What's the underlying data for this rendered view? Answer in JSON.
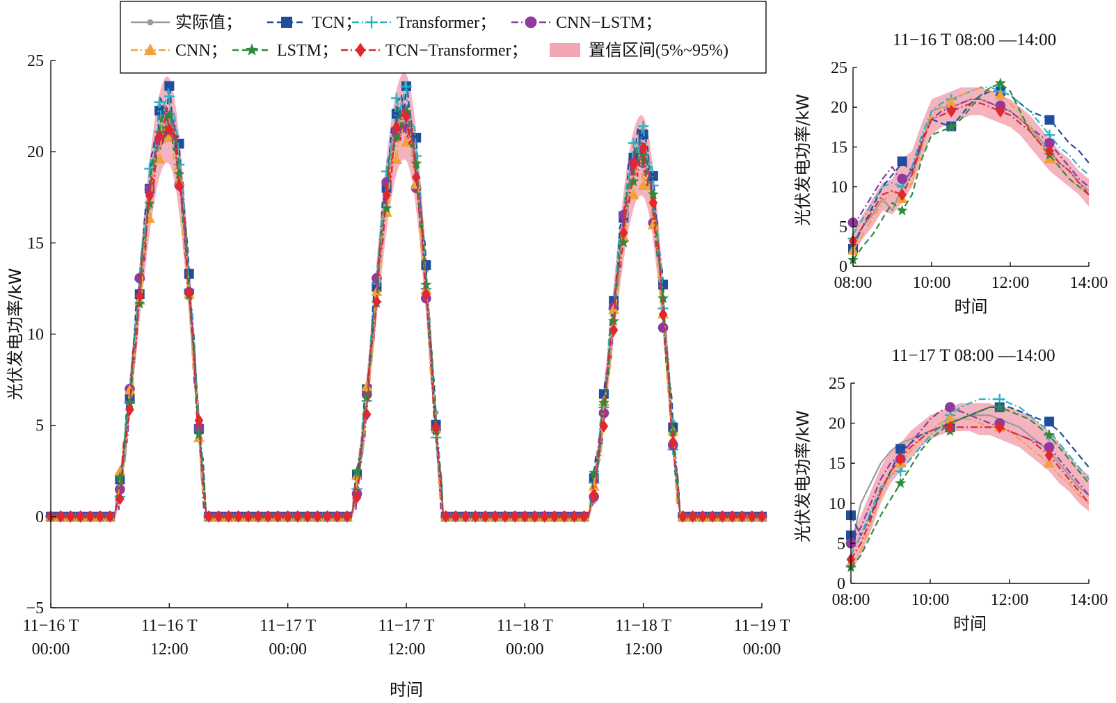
{
  "colors": {
    "actual": "#9a9a9a",
    "tcn": "#1f4e9c",
    "transformer": "#2bb3c0",
    "cnn_lstm": "#8e3a9f",
    "cnn": "#f2a23a",
    "lstm": "#2e8b3e",
    "tcn_transformer": "#e0282e",
    "ci": "#f2a6b3"
  },
  "legend": [
    {
      "key": "actual",
      "label": "实际值；",
      "marker": "dot"
    },
    {
      "key": "tcn",
      "label": "TCN；",
      "marker": "square"
    },
    {
      "key": "transformer",
      "label": "Transformer；",
      "marker": "plus"
    },
    {
      "key": "cnn_lstm",
      "label": "CNN−LSTM；",
      "marker": "circle"
    },
    {
      "key": "cnn",
      "label": "CNN；",
      "marker": "triangle"
    },
    {
      "key": "lstm",
      "label": "LSTM；",
      "marker": "star"
    },
    {
      "key": "tcn_transformer",
      "label": "TCN−Transformer；",
      "marker": "diamond"
    },
    {
      "key": "ci",
      "label": "置信区间(5%~95%)",
      "marker": "band"
    }
  ],
  "chart_data": [
    {
      "type": "line",
      "id": "main",
      "ylabel": "光伏发电功率/kW",
      "xlabel": "时间",
      "ylim": [
        -5,
        25
      ],
      "yticks": [
        -5,
        0,
        5,
        10,
        15,
        20,
        25
      ],
      "xlim_hours": [
        0,
        72
      ],
      "xticks": [
        {
          "hour": 0,
          "line1": "11−16 T",
          "line2": "00:00"
        },
        {
          "hour": 12,
          "line1": "11−16 T",
          "line2": "12:00"
        },
        {
          "hour": 24,
          "line1": "11−17 T",
          "line2": "00:00"
        },
        {
          "hour": 36,
          "line1": "11−17 T",
          "line2": "12:00"
        },
        {
          "hour": 48,
          "line1": "11−18 T",
          "line2": "00:00"
        },
        {
          "hour": 60,
          "line1": "11−18 T",
          "line2": "12:00"
        },
        {
          "hour": 72,
          "line1": "11−19 T",
          "line2": "00:00"
        }
      ],
      "days": [
        {
          "start": 6.3,
          "end": 15.8,
          "peak_hour": 11.8,
          "peak": 22.0
        },
        {
          "start": 30.3,
          "end": 39.8,
          "peak_hour": 35.8,
          "peak": 22.2
        },
        {
          "start": 54.3,
          "end": 63.8,
          "peak_hour": 59.8,
          "peak": 20.0
        }
      ],
      "series": [
        {
          "key": "actual",
          "name": "实际值",
          "offset": 0.0,
          "scale": 1.0
        },
        {
          "key": "tcn",
          "name": "TCN",
          "offset": 0.35,
          "scale": 1.02
        },
        {
          "key": "transformer",
          "name": "Transformer",
          "offset": 0.1,
          "scale": 1.03
        },
        {
          "key": "cnn_lstm",
          "name": "CNN-LSTM",
          "offset": -0.1,
          "scale": 0.99
        },
        {
          "key": "cnn",
          "name": "CNN",
          "offset": -0.05,
          "scale": 0.96
        },
        {
          "key": "lstm",
          "name": "LSTM",
          "offset": 0.25,
          "scale": 0.98
        },
        {
          "key": "tcn_transformer",
          "name": "TCN-Transformer",
          "offset": 0.05,
          "scale": 0.98
        }
      ]
    },
    {
      "type": "line",
      "id": "inset1",
      "title": "11−16 T 08:00 —14:00",
      "ylabel": "光伏发电功率/kW",
      "xlabel": "时间",
      "ylim": [
        0,
        25
      ],
      "yticks": [
        0,
        5,
        10,
        15,
        20,
        25
      ],
      "xticks": [
        "08:00",
        "10:00",
        "12:00",
        "14:00"
      ],
      "x": [
        8.0,
        8.25,
        8.5,
        8.75,
        9.0,
        9.25,
        9.5,
        9.75,
        10.0,
        10.25,
        10.5,
        10.75,
        11.0,
        11.25,
        11.5,
        11.75,
        12.0,
        12.25,
        12.5,
        12.75,
        13.0,
        13.25,
        13.5,
        13.75,
        14.0
      ],
      "series": [
        {
          "key": "actual",
          "values": [
            3,
            5,
            6.5,
            8.5,
            7.0,
            10.0,
            11.5,
            15.0,
            19.5,
            20.0,
            20.0,
            20.5,
            21.0,
            21.0,
            20.5,
            20.0,
            19.5,
            18.5,
            17.5,
            16.0,
            14.5,
            13.0,
            12.0,
            10.5,
            9.5
          ]
        },
        {
          "key": "tcn",
          "values": [
            2.5,
            5,
            7.5,
            10,
            11.5,
            13.0,
            12,
            15.5,
            18.5,
            18.0,
            17.5,
            19,
            20.5,
            21.5,
            22.0,
            22.0,
            21.5,
            20.5,
            19.5,
            19.0,
            18.5,
            17.0,
            15.5,
            14.5,
            13
          ]
        },
        {
          "key": "transformer",
          "values": [
            4,
            6,
            8,
            10,
            10.5,
            10.0,
            12.5,
            16.5,
            19.5,
            20.5,
            21.0,
            21.5,
            22.0,
            22.5,
            22.5,
            22.0,
            21.5,
            20.5,
            19.5,
            18.0,
            16.5,
            15.0,
            14.0,
            12.5,
            11.5
          ]
        },
        {
          "key": "cnn_lstm",
          "values": [
            5.0,
            7,
            9,
            11,
            12.5,
            10.5,
            12,
            16,
            18.5,
            19.5,
            20.0,
            20.5,
            21.0,
            21.0,
            20.5,
            20.0,
            19.5,
            18.5,
            17.5,
            16.5,
            15.5,
            14.0,
            12.5,
            11.0,
            10.0
          ]
        },
        {
          "key": "cnn",
          "values": [
            2.0,
            4,
            6,
            8,
            9.5,
            8.5,
            10.5,
            15,
            19.0,
            20.0,
            21.0,
            21.5,
            22.0,
            22.5,
            22.0,
            21.5,
            20.5,
            19.0,
            17.5,
            15.5,
            13.5,
            12.5,
            11.0,
            10.0,
            9.0
          ]
        },
        {
          "key": "lstm",
          "values": [
            0.8,
            2.5,
            4.0,
            6.0,
            8.0,
            7.0,
            9,
            13.5,
            16.5,
            17.0,
            17.5,
            18.5,
            20.0,
            21.5,
            22.5,
            23.0,
            22.0,
            19.5,
            17.0,
            15.5,
            14.0,
            12.5,
            11.0,
            10.0,
            9.0
          ]
        },
        {
          "key": "tcn_transformer",
          "values": [
            3.0,
            5,
            7,
            9,
            9.5,
            9.0,
            11.5,
            15.5,
            18.5,
            19.0,
            19.5,
            20.0,
            20.5,
            20.5,
            20.0,
            19.5,
            19.0,
            18.0,
            17.0,
            15.5,
            14.5,
            13.0,
            12.0,
            10.5,
            9.0
          ]
        }
      ],
      "markers": {
        "tcn": [
          [
            8.0,
            2.2
          ],
          [
            9.25,
            13.2
          ],
          [
            10.5,
            17.6
          ],
          [
            11.75,
            22.0
          ],
          [
            13.0,
            18.4
          ]
        ],
        "transformer": [
          [
            8.0,
            3.5
          ],
          [
            9.25,
            10.0
          ],
          [
            10.5,
            21.0
          ],
          [
            11.75,
            22.0
          ],
          [
            13.0,
            16.5
          ]
        ],
        "cnn_lstm": [
          [
            8.0,
            5.5
          ],
          [
            9.25,
            11.0
          ],
          [
            10.5,
            20.0
          ],
          [
            11.75,
            20.2
          ],
          [
            13.0,
            15.5
          ]
        ],
        "cnn": [
          [
            8.0,
            2.0
          ],
          [
            9.25,
            8.5
          ],
          [
            10.5,
            20.5
          ],
          [
            11.75,
            21.5
          ],
          [
            13.0,
            13.5
          ]
        ],
        "lstm": [
          [
            8.0,
            0.8
          ],
          [
            9.25,
            7.0
          ],
          [
            10.5,
            17.5
          ],
          [
            11.75,
            23.0
          ],
          [
            13.0,
            14.0
          ]
        ],
        "tcn_transformer": [
          [
            8.0,
            3.2
          ],
          [
            9.25,
            9.0
          ],
          [
            10.5,
            19.5
          ],
          [
            11.75,
            19.5
          ],
          [
            13.0,
            14.5
          ]
        ]
      },
      "ci_low": [
        1.5,
        3.5,
        5.0,
        7.0,
        6.5,
        8.0,
        10.0,
        13.5,
        16.5,
        17.5,
        18.0,
        18.5,
        19.0,
        19.0,
        18.5,
        18.0,
        17.5,
        16.5,
        15.0,
        13.5,
        12.0,
        11.0,
        10.0,
        9.0,
        7.5
      ],
      "ci_high": [
        4.5,
        6.5,
        8.5,
        10.5,
        11.0,
        13.5,
        14.5,
        18.0,
        21.0,
        21.5,
        22.0,
        22.5,
        22.5,
        22.5,
        22.0,
        21.5,
        21.0,
        20.0,
        19.0,
        17.5,
        16.0,
        14.5,
        13.5,
        12.0,
        11.0
      ]
    },
    {
      "type": "line",
      "id": "inset2",
      "title": "11−17 T 08:00 —14:00",
      "ylabel": "光伏发电功率/kW",
      "xlabel": "时间",
      "ylim": [
        0,
        25
      ],
      "yticks": [
        0,
        5,
        10,
        15,
        20,
        25
      ],
      "xticks": [
        "08:00",
        "10:00",
        "12:00",
        "14:00"
      ],
      "x": [
        8.0,
        8.25,
        8.5,
        8.75,
        9.0,
        9.25,
        9.5,
        9.75,
        10.0,
        10.25,
        10.5,
        10.75,
        11.0,
        11.25,
        11.5,
        11.75,
        12.0,
        12.25,
        12.5,
        12.75,
        13.0,
        13.25,
        13.5,
        13.75,
        14.0
      ],
      "series": [
        {
          "key": "actual",
          "values": [
            4.5,
            10.0,
            12.5,
            15.0,
            16.5,
            17.5,
            18.0,
            18.5,
            19.0,
            19.5,
            20.0,
            20.5,
            21.0,
            21.0,
            21.0,
            20.5,
            20.0,
            19.5,
            18.5,
            17.5,
            16.5,
            15.0,
            13.5,
            12.0,
            11.0
          ]
        },
        {
          "key": "tcn",
          "values": [
            8.5,
            6.0,
            8.5,
            11.5,
            14.0,
            16.5,
            17.5,
            18.5,
            19.0,
            19.5,
            20.0,
            20.5,
            21.0,
            21.5,
            22.0,
            22.0,
            22.0,
            21.5,
            21.0,
            20.5,
            20.0,
            19.0,
            17.5,
            16.0,
            14.5
          ]
        },
        {
          "key": "transformer",
          "values": [
            3.5,
            6.0,
            9.0,
            12.0,
            13.5,
            14.0,
            15.5,
            17.0,
            18.5,
            19.5,
            21.0,
            22.0,
            22.5,
            23.0,
            23.0,
            23.0,
            22.5,
            22.0,
            21.0,
            20.0,
            19.0,
            17.5,
            16.0,
            14.5,
            13.0
          ]
        },
        {
          "key": "cnn_lstm",
          "values": [
            5.0,
            7.0,
            10.0,
            13.0,
            15.0,
            16.0,
            17.5,
            19.0,
            20.5,
            21.5,
            22.0,
            21.5,
            21.0,
            20.5,
            20.0,
            19.5,
            19.0,
            18.5,
            18.0,
            17.5,
            17.0,
            15.5,
            14.0,
            12.5,
            11.0
          ]
        },
        {
          "key": "cnn",
          "values": [
            2.5,
            4.0,
            7.5,
            11.0,
            13.5,
            15.0,
            16.5,
            18.0,
            19.0,
            20.0,
            20.5,
            20.5,
            20.5,
            20.0,
            19.5,
            19.5,
            19.0,
            18.0,
            17.0,
            16.0,
            15.0,
            13.5,
            12.5,
            11.0,
            10.0
          ]
        },
        {
          "key": "lstm",
          "values": [
            2.0,
            3.5,
            6.0,
            8.5,
            10.5,
            12.5,
            14.5,
            16.5,
            18.0,
            19.0,
            20.0,
            20.5,
            21.0,
            21.5,
            22.0,
            22.0,
            21.5,
            21.0,
            20.5,
            19.5,
            18.5,
            17.0,
            15.5,
            14.0,
            12.5
          ]
        },
        {
          "key": "tcn_transformer",
          "values": [
            3.0,
            5.0,
            8.0,
            11.5,
            14.0,
            15.5,
            17.0,
            18.0,
            19.0,
            19.5,
            19.5,
            19.5,
            19.5,
            19.5,
            19.5,
            19.5,
            19.0,
            18.5,
            18.0,
            17.0,
            16.0,
            14.5,
            13.0,
            11.5,
            10.0
          ]
        }
      ],
      "markers": {
        "tcn": [
          [
            8.0,
            8.5
          ],
          [
            8.0,
            6.0
          ],
          [
            9.25,
            16.8
          ],
          [
            10.5,
            19.5
          ],
          [
            11.75,
            22.0
          ],
          [
            13.0,
            20.2
          ]
        ],
        "transformer": [
          [
            9.25,
            14.0
          ],
          [
            10.5,
            21.0
          ],
          [
            11.75,
            23.0
          ],
          [
            13.0,
            18.5
          ]
        ],
        "cnn_lstm": [
          [
            8.0,
            5.0
          ],
          [
            9.25,
            15.5
          ],
          [
            10.5,
            22.0
          ],
          [
            11.75,
            20.0
          ],
          [
            13.0,
            17.0
          ]
        ],
        "cnn": [
          [
            8.0,
            2.5
          ],
          [
            9.25,
            15.0
          ],
          [
            10.5,
            20.5
          ],
          [
            11.75,
            19.5
          ],
          [
            13.0,
            15.0
          ]
        ],
        "lstm": [
          [
            8.0,
            2.0
          ],
          [
            9.25,
            12.5
          ],
          [
            10.5,
            19.0
          ],
          [
            11.75,
            22.0
          ],
          [
            13.0,
            18.5
          ]
        ],
        "tcn_transformer": [
          [
            8.0,
            3.0
          ],
          [
            9.25,
            15.5
          ],
          [
            10.5,
            19.5
          ],
          [
            11.75,
            19.5
          ],
          [
            13.0,
            16.0
          ]
        ]
      },
      "ci_low": [
        1.5,
        3.5,
        6.5,
        10.0,
        12.5,
        14.0,
        15.5,
        17.0,
        18.0,
        18.5,
        19.0,
        19.0,
        19.0,
        18.5,
        18.5,
        18.0,
        17.5,
        17.0,
        16.0,
        15.0,
        14.0,
        12.5,
        11.5,
        10.0,
        9.0
      ],
      "ci_high": [
        6.0,
        8.5,
        11.5,
        14.5,
        16.5,
        17.5,
        19.0,
        20.0,
        21.0,
        21.5,
        22.0,
        22.5,
        22.5,
        22.5,
        22.5,
        22.0,
        22.0,
        21.5,
        21.0,
        20.0,
        19.0,
        17.5,
        16.0,
        14.5,
        13.5
      ]
    }
  ]
}
